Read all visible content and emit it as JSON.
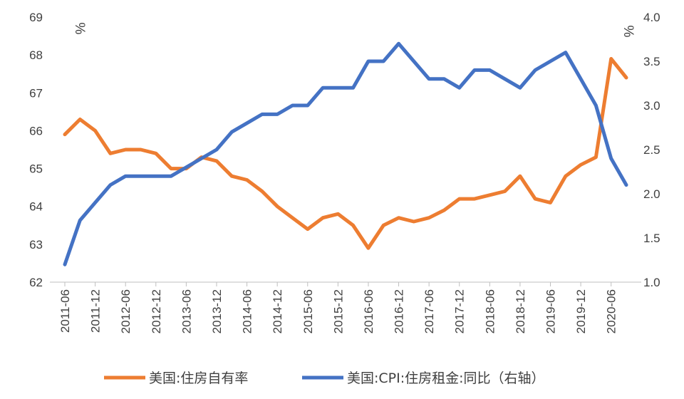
{
  "chart_data": {
    "type": "line",
    "x": [
      "2011-06",
      "2011-09",
      "2011-12",
      "2012-03",
      "2012-06",
      "2012-09",
      "2012-12",
      "2013-03",
      "2013-06",
      "2013-09",
      "2013-12",
      "2014-03",
      "2014-06",
      "2014-09",
      "2014-12",
      "2015-03",
      "2015-06",
      "2015-09",
      "2015-12",
      "2016-03",
      "2016-06",
      "2016-09",
      "2016-12",
      "2017-03",
      "2017-06",
      "2017-09",
      "2017-12",
      "2018-03",
      "2018-06",
      "2018-09",
      "2018-12",
      "2019-03",
      "2019-06",
      "2019-09",
      "2019-12",
      "2020-03",
      "2020-06",
      "2020-09"
    ],
    "x_tick_labels": [
      "2011-06",
      "2011-12",
      "2012-06",
      "2012-12",
      "2013-06",
      "2013-12",
      "2014-06",
      "2014-12",
      "2015-06",
      "2015-12",
      "2016-06",
      "2016-12",
      "2017-06",
      "2017-12",
      "2018-06",
      "2018-12",
      "2019-06",
      "2019-12",
      "2020-06"
    ],
    "series": [
      {
        "name": "美国:住房自有率",
        "axis": "left",
        "color": "#ED7D31",
        "values": [
          65.9,
          66.3,
          66.0,
          65.4,
          65.5,
          65.5,
          65.4,
          65.0,
          65.0,
          65.3,
          65.2,
          64.8,
          64.7,
          64.4,
          64.0,
          63.7,
          63.4,
          63.7,
          63.8,
          63.5,
          62.9,
          63.5,
          63.7,
          63.6,
          63.7,
          63.9,
          64.2,
          64.2,
          64.3,
          64.4,
          64.8,
          64.2,
          64.1,
          64.8,
          65.1,
          65.3,
          67.9,
          67.4
        ]
      },
      {
        "name": "美国:CPI:住房租金:同比（右轴）",
        "axis": "right",
        "color": "#4472C4",
        "values": [
          1.2,
          1.7,
          1.9,
          2.1,
          2.2,
          2.2,
          2.2,
          2.2,
          2.3,
          2.4,
          2.5,
          2.7,
          2.8,
          2.9,
          2.9,
          3.0,
          3.0,
          3.2,
          3.2,
          3.2,
          3.5,
          3.5,
          3.7,
          3.5,
          3.3,
          3.3,
          3.2,
          3.4,
          3.4,
          3.3,
          3.2,
          3.4,
          3.5,
          3.6,
          3.3,
          3.0,
          2.4,
          2.1
        ]
      }
    ],
    "y_left": {
      "lim": [
        62,
        69
      ],
      "ticks": [
        "62",
        "63",
        "64",
        "65",
        "66",
        "67",
        "68",
        "69"
      ],
      "unit": "%"
    },
    "y_right": {
      "lim": [
        1.0,
        4.0
      ],
      "ticks": [
        "1.0",
        "1.5",
        "2.0",
        "2.5",
        "3.0",
        "3.5",
        "4.0"
      ],
      "unit": "%"
    },
    "grid": false,
    "legend_position": "bottom"
  }
}
